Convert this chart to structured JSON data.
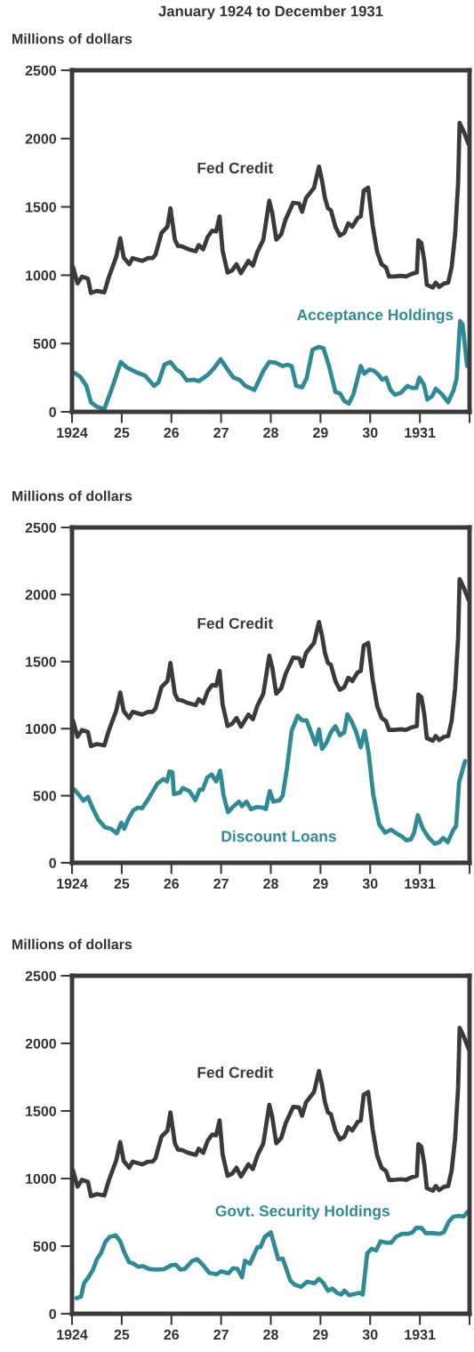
{
  "chart_data": [
    {
      "type": "line",
      "title": "January 1924 to December 1931",
      "ylabel": "Millions of dollars",
      "xlim": [
        1924,
        1932
      ],
      "ylim": [
        0,
        2500
      ],
      "xticks": [
        {
          "value": 1924,
          "label": "1924"
        },
        {
          "value": 1925,
          "label": "25"
        },
        {
          "value": 1926,
          "label": "26"
        },
        {
          "value": 1927,
          "label": "27"
        },
        {
          "value": 1928,
          "label": "28"
        },
        {
          "value": 1929,
          "label": "29"
        },
        {
          "value": 1930,
          "label": "30"
        },
        {
          "value": 1931,
          "label": "1931"
        },
        {
          "value": 1932,
          "label": null
        }
      ],
      "yticks": [
        0,
        500,
        1000,
        1500,
        2000,
        2500
      ],
      "grid": false,
      "legend": false,
      "series": [
        {
          "name": "Fed Credit",
          "color": "#3a3a3a",
          "x": [
            1924.02,
            1924.11,
            1924.2,
            1924.32,
            1924.38,
            1924.5,
            1924.65,
            1924.74,
            1924.89,
            1924.97,
            1925.04,
            1925.15,
            1925.22,
            1925.41,
            1925.53,
            1925.62,
            1925.68,
            1925.8,
            1925.92,
            1925.98,
            1926.07,
            1926.13,
            1926.22,
            1926.34,
            1926.49,
            1926.55,
            1926.64,
            1926.73,
            1926.82,
            1926.9,
            1926.97,
            1927.03,
            1927.13,
            1927.22,
            1927.31,
            1927.4,
            1927.55,
            1927.64,
            1927.73,
            1927.85,
            1927.97,
            1928.03,
            1928.11,
            1928.21,
            1928.3,
            1928.45,
            1928.57,
            1928.63,
            1928.71,
            1928.87,
            1928.97,
            1929.03,
            1929.09,
            1929.15,
            1929.21,
            1929.3,
            1929.39,
            1929.48,
            1929.56,
            1929.64,
            1929.75,
            1929.81,
            1929.87,
            1929.96,
            1930.05,
            1930.14,
            1930.23,
            1930.32,
            1930.38,
            1930.47,
            1930.62,
            1930.72,
            1930.84,
            1930.94,
            1930.97,
            1931.03,
            1931.09,
            1931.14,
            1931.26,
            1931.32,
            1931.39,
            1931.49,
            1931.57,
            1931.64,
            1931.71,
            1931.77,
            1931.8,
            1931.89,
            1931.98
          ],
          "values": [
            1060,
            940,
            990,
            975,
            870,
            885,
            875,
            985,
            1135,
            1270,
            1130,
            1080,
            1125,
            1105,
            1125,
            1125,
            1150,
            1310,
            1355,
            1490,
            1260,
            1215,
            1210,
            1190,
            1175,
            1220,
            1190,
            1280,
            1325,
            1320,
            1430,
            1180,
            1020,
            1035,
            1080,
            1015,
            1105,
            1070,
            1170,
            1260,
            1545,
            1455,
            1260,
            1300,
            1410,
            1530,
            1525,
            1465,
            1565,
            1640,
            1795,
            1695,
            1565,
            1490,
            1475,
            1355,
            1290,
            1310,
            1380,
            1355,
            1420,
            1430,
            1620,
            1640,
            1365,
            1170,
            1080,
            1055,
            990,
            990,
            995,
            990,
            1010,
            1020,
            1255,
            1235,
            1105,
            930,
            910,
            945,
            915,
            940,
            945,
            1060,
            1300,
            1675,
            2115,
            2045,
            1960
          ]
        },
        {
          "name": "Acceptance Holdings",
          "color": "#2e8b95",
          "x": [
            1924.05,
            1924.17,
            1924.29,
            1924.38,
            1924.5,
            1924.65,
            1924.83,
            1924.98,
            1925.1,
            1925.29,
            1925.47,
            1925.65,
            1925.74,
            1925.86,
            1925.98,
            1926.1,
            1926.19,
            1926.31,
            1926.46,
            1926.55,
            1926.73,
            1926.87,
            1926.99,
            1927.13,
            1927.25,
            1927.37,
            1927.49,
            1927.67,
            1927.85,
            1927.97,
            1928.09,
            1928.24,
            1928.33,
            1928.42,
            1928.51,
            1928.63,
            1928.72,
            1928.84,
            1928.97,
            1929.06,
            1929.18,
            1929.3,
            1929.39,
            1929.48,
            1929.57,
            1929.66,
            1929.81,
            1929.88,
            1929.99,
            1930.08,
            1930.17,
            1930.24,
            1930.32,
            1930.41,
            1930.5,
            1930.62,
            1930.75,
            1930.84,
            1930.93,
            1930.99,
            1931.08,
            1931.15,
            1931.25,
            1931.32,
            1931.44,
            1931.57,
            1931.68,
            1931.74,
            1931.81,
            1931.86,
            1931.95
          ],
          "values": [
            285,
            255,
            190,
            70,
            37,
            20,
            200,
            365,
            325,
            290,
            265,
            190,
            215,
            345,
            365,
            310,
            290,
            230,
            235,
            225,
            270,
            325,
            385,
            310,
            250,
            235,
            190,
            160,
            300,
            365,
            360,
            335,
            345,
            335,
            190,
            180,
            245,
            455,
            475,
            465,
            325,
            145,
            135,
            80,
            60,
            125,
            335,
            280,
            310,
            300,
            270,
            235,
            250,
            160,
            125,
            140,
            190,
            175,
            175,
            250,
            200,
            90,
            115,
            170,
            130,
            70,
            160,
            245,
            665,
            640,
            335
          ]
        }
      ]
    },
    {
      "type": "line",
      "ylabel": "Millions of dollars",
      "xlim": [
        1924,
        1932
      ],
      "ylim": [
        0,
        2500
      ],
      "xticks": [
        {
          "value": 1924,
          "label": "1924"
        },
        {
          "value": 1925,
          "label": "25"
        },
        {
          "value": 1926,
          "label": "26"
        },
        {
          "value": 1927,
          "label": "27"
        },
        {
          "value": 1928,
          "label": "28"
        },
        {
          "value": 1929,
          "label": "29"
        },
        {
          "value": 1930,
          "label": "30"
        },
        {
          "value": 1931,
          "label": "1931"
        },
        {
          "value": 1932,
          "label": null
        }
      ],
      "yticks": [
        0,
        500,
        1000,
        1500,
        2000,
        2500
      ],
      "grid": false,
      "legend": false,
      "series": [
        {
          "name": "Fed Credit",
          "color": "#3a3a3a",
          "x": [
            1924.02,
            1924.11,
            1924.2,
            1924.32,
            1924.38,
            1924.5,
            1924.65,
            1924.74,
            1924.89,
            1924.97,
            1925.04,
            1925.15,
            1925.22,
            1925.41,
            1925.53,
            1925.62,
            1925.68,
            1925.8,
            1925.92,
            1925.98,
            1926.07,
            1926.13,
            1926.22,
            1926.34,
            1926.49,
            1926.55,
            1926.64,
            1926.73,
            1926.82,
            1926.9,
            1926.97,
            1927.03,
            1927.13,
            1927.22,
            1927.31,
            1927.4,
            1927.55,
            1927.64,
            1927.73,
            1927.85,
            1927.97,
            1928.03,
            1928.11,
            1928.21,
            1928.3,
            1928.45,
            1928.57,
            1928.63,
            1928.71,
            1928.87,
            1928.97,
            1929.03,
            1929.09,
            1929.15,
            1929.21,
            1929.3,
            1929.39,
            1929.48,
            1929.56,
            1929.64,
            1929.75,
            1929.81,
            1929.87,
            1929.96,
            1930.05,
            1930.14,
            1930.23,
            1930.32,
            1930.38,
            1930.47,
            1930.62,
            1930.72,
            1930.84,
            1930.94,
            1930.97,
            1931.03,
            1931.09,
            1931.14,
            1931.26,
            1931.32,
            1931.39,
            1931.49,
            1931.57,
            1931.64,
            1931.71,
            1931.77,
            1931.8,
            1931.89,
            1931.98
          ],
          "values": [
            1060,
            940,
            990,
            975,
            870,
            885,
            875,
            985,
            1135,
            1270,
            1130,
            1080,
            1125,
            1105,
            1125,
            1125,
            1150,
            1310,
            1355,
            1490,
            1260,
            1215,
            1210,
            1190,
            1175,
            1220,
            1190,
            1280,
            1325,
            1320,
            1430,
            1180,
            1020,
            1035,
            1080,
            1015,
            1105,
            1070,
            1170,
            1260,
            1545,
            1455,
            1260,
            1300,
            1410,
            1530,
            1525,
            1465,
            1565,
            1640,
            1795,
            1695,
            1565,
            1490,
            1475,
            1355,
            1290,
            1310,
            1380,
            1355,
            1420,
            1430,
            1620,
            1640,
            1365,
            1170,
            1080,
            1055,
            990,
            990,
            995,
            990,
            1010,
            1020,
            1255,
            1235,
            1105,
            930,
            910,
            945,
            915,
            940,
            945,
            1060,
            1300,
            1675,
            2115,
            2045,
            1960
          ]
        },
        {
          "name": "Discount Loans",
          "color": "#2e8b95",
          "x": [
            1924.05,
            1924.15,
            1924.23,
            1924.32,
            1924.41,
            1924.53,
            1924.66,
            1924.78,
            1924.9,
            1924.99,
            1925.05,
            1925.14,
            1925.23,
            1925.32,
            1925.41,
            1925.54,
            1925.63,
            1925.72,
            1925.84,
            1925.91,
            1925.96,
            1926.02,
            1926.05,
            1926.17,
            1926.23,
            1926.36,
            1926.48,
            1926.57,
            1926.63,
            1926.72,
            1926.81,
            1926.9,
            1926.98,
            1927.05,
            1927.14,
            1927.24,
            1927.36,
            1927.42,
            1927.51,
            1927.6,
            1927.72,
            1927.84,
            1927.9,
            1927.98,
            1928.05,
            1928.18,
            1928.24,
            1928.33,
            1928.42,
            1928.54,
            1928.63,
            1928.72,
            1928.81,
            1928.9,
            1928.97,
            1929.03,
            1929.12,
            1929.21,
            1929.3,
            1929.39,
            1929.48,
            1929.54,
            1929.63,
            1929.72,
            1929.81,
            1929.89,
            1929.97,
            1930.06,
            1930.18,
            1930.3,
            1930.42,
            1930.54,
            1930.63,
            1930.73,
            1930.82,
            1930.88,
            1930.96,
            1931.06,
            1931.18,
            1931.3,
            1931.39,
            1931.47,
            1931.56,
            1931.67,
            1931.73,
            1931.79,
            1931.91
          ],
          "values": [
            546,
            500,
            463,
            490,
            411,
            321,
            265,
            254,
            220,
            299,
            254,
            332,
            389,
            411,
            407,
            478,
            535,
            591,
            624,
            606,
            681,
            674,
            512,
            523,
            557,
            535,
            467,
            546,
            546,
            636,
            659,
            606,
            687,
            501,
            377,
            418,
            456,
            422,
            456,
            400,
            416,
            411,
            400,
            535,
            456,
            467,
            501,
            714,
            984,
            1096,
            1062,
            1062,
            973,
            883,
            995,
            849,
            894,
            973,
            1018,
            950,
            973,
            1107,
            1051,
            973,
            860,
            984,
            815,
            512,
            288,
            225,
            247,
            216,
            198,
            168,
            175,
            220,
            355,
            254,
            186,
            142,
            153,
            186,
            153,
            243,
            276,
            602,
            759
          ]
        }
      ]
    },
    {
      "type": "line",
      "ylabel": "Millions of dollars",
      "xlim": [
        1924,
        1932
      ],
      "ylim": [
        0,
        2500
      ],
      "xticks": [
        {
          "value": 1924,
          "label": "1924"
        },
        {
          "value": 1925,
          "label": "25"
        },
        {
          "value": 1926,
          "label": "26"
        },
        {
          "value": 1927,
          "label": "27"
        },
        {
          "value": 1928,
          "label": "28"
        },
        {
          "value": 1929,
          "label": "29"
        },
        {
          "value": 1930,
          "label": "30"
        },
        {
          "value": 1931,
          "label": "1931"
        },
        {
          "value": 1932,
          "label": null
        }
      ],
      "yticks": [
        0,
        500,
        1000,
        1500,
        2000,
        2500
      ],
      "grid": false,
      "legend": false,
      "series": [
        {
          "name": "Fed Credit",
          "color": "#3a3a3a",
          "x": [
            1924.02,
            1924.11,
            1924.2,
            1924.32,
            1924.38,
            1924.5,
            1924.65,
            1924.74,
            1924.89,
            1924.97,
            1925.04,
            1925.15,
            1925.22,
            1925.41,
            1925.53,
            1925.62,
            1925.68,
            1925.8,
            1925.92,
            1925.98,
            1926.07,
            1926.13,
            1926.22,
            1926.34,
            1926.49,
            1926.55,
            1926.64,
            1926.73,
            1926.82,
            1926.9,
            1926.97,
            1927.03,
            1927.13,
            1927.22,
            1927.31,
            1927.4,
            1927.55,
            1927.64,
            1927.73,
            1927.85,
            1927.97,
            1928.03,
            1928.11,
            1928.21,
            1928.3,
            1928.45,
            1928.57,
            1928.63,
            1928.71,
            1928.87,
            1928.97,
            1929.03,
            1929.09,
            1929.15,
            1929.21,
            1929.3,
            1929.39,
            1929.48,
            1929.56,
            1929.64,
            1929.75,
            1929.81,
            1929.87,
            1929.96,
            1930.05,
            1930.14,
            1930.23,
            1930.32,
            1930.38,
            1930.47,
            1930.62,
            1930.72,
            1930.84,
            1930.94,
            1930.97,
            1931.03,
            1931.09,
            1931.14,
            1931.26,
            1931.32,
            1931.39,
            1931.49,
            1931.57,
            1931.64,
            1931.71,
            1931.77,
            1931.8,
            1931.89,
            1931.98
          ],
          "values": [
            1060,
            940,
            990,
            975,
            870,
            885,
            875,
            985,
            1135,
            1270,
            1130,
            1080,
            1125,
            1105,
            1125,
            1125,
            1150,
            1310,
            1355,
            1490,
            1260,
            1215,
            1210,
            1190,
            1175,
            1220,
            1190,
            1280,
            1325,
            1320,
            1430,
            1180,
            1020,
            1035,
            1080,
            1015,
            1105,
            1070,
            1170,
            1260,
            1545,
            1455,
            1260,
            1300,
            1410,
            1530,
            1525,
            1465,
            1565,
            1640,
            1795,
            1695,
            1565,
            1490,
            1475,
            1355,
            1290,
            1310,
            1380,
            1355,
            1420,
            1430,
            1620,
            1640,
            1365,
            1170,
            1080,
            1055,
            990,
            990,
            995,
            990,
            1010,
            1020,
            1255,
            1235,
            1105,
            930,
            910,
            945,
            915,
            940,
            945,
            1060,
            1300,
            1675,
            2115,
            2045,
            1960
          ]
        },
        {
          "name": "Govt. Security Holdings",
          "color": "#2e8b95",
          "x": [
            1924.09,
            1924.18,
            1924.24,
            1924.33,
            1924.42,
            1924.5,
            1924.58,
            1924.67,
            1924.76,
            1924.88,
            1924.97,
            1925.06,
            1925.15,
            1925.24,
            1925.33,
            1925.42,
            1925.55,
            1925.7,
            1925.85,
            1926.0,
            1926.09,
            1926.18,
            1926.27,
            1926.42,
            1926.52,
            1926.64,
            1926.76,
            1926.91,
            1927.0,
            1927.15,
            1927.24,
            1927.33,
            1927.42,
            1927.48,
            1927.58,
            1927.73,
            1927.79,
            1927.88,
            1928.0,
            1928.15,
            1928.24,
            1928.39,
            1928.48,
            1928.61,
            1928.73,
            1928.88,
            1928.97,
            1929.06,
            1929.15,
            1929.24,
            1929.33,
            1929.42,
            1929.48,
            1929.58,
            1929.7,
            1929.79,
            1929.85,
            1929.94,
            1930.03,
            1930.12,
            1930.21,
            1930.33,
            1930.42,
            1930.52,
            1930.64,
            1930.76,
            1930.85,
            1930.93,
            1931.03,
            1931.12,
            1931.27,
            1931.39,
            1931.48,
            1931.58,
            1931.67,
            1931.76,
            1931.88,
            1931.97
          ],
          "values": [
            115,
            126,
            226,
            270,
            325,
            403,
            447,
            531,
            569,
            580,
            536,
            447,
            381,
            370,
            348,
            352,
            332,
            326,
            330,
            359,
            363,
            326,
            332,
            392,
            403,
            359,
            303,
            292,
            314,
            299,
            337,
            332,
            270,
            392,
            370,
            492,
            492,
            569,
            602,
            403,
            408,
            248,
            215,
            199,
            237,
            226,
            259,
            226,
            171,
            186,
            155,
            142,
            171,
            137,
            148,
            155,
            142,
            447,
            481,
            469,
            536,
            525,
            525,
            569,
            591,
            591,
            602,
            636,
            636,
            596,
            596,
            591,
            602,
            680,
            717,
            724,
            720,
            757
          ]
        }
      ]
    }
  ]
}
